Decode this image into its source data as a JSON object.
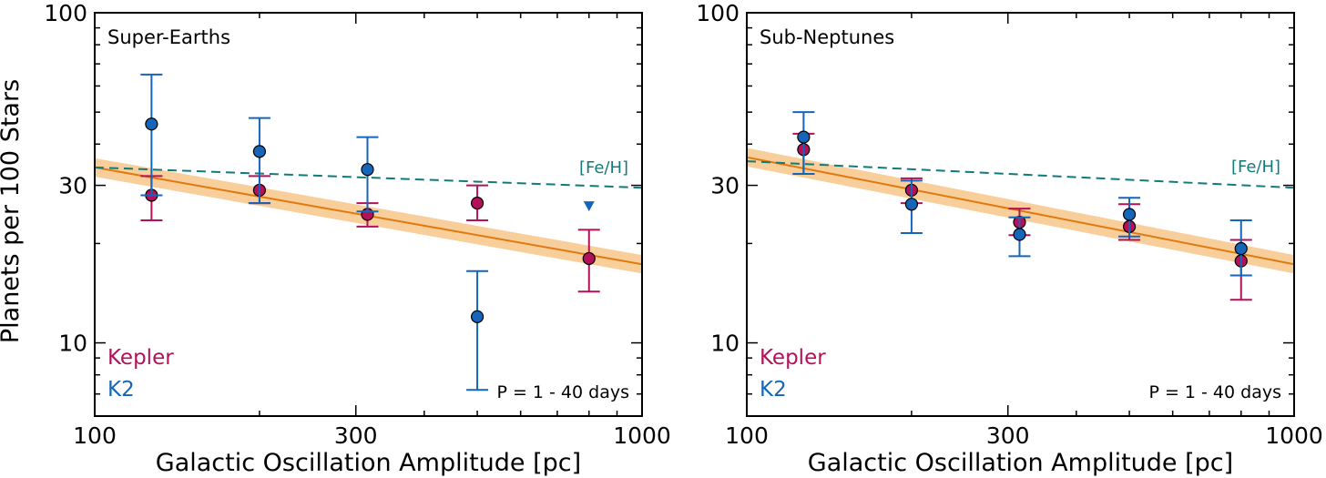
{
  "figure": {
    "ylabel": "Planets per 100 Stars",
    "colors": {
      "kepler": "#b5105a",
      "k2": "#1565b8",
      "fit_line": "#e07a10",
      "fit_band": "#f8cf9a",
      "metallicity": "#137a7a"
    }
  },
  "chart_data": [
    {
      "type": "scatter",
      "panel": "left",
      "title": "Super-Earths",
      "xlabel": "Galactic Oscillation Amplitude [pc]",
      "ylabel": "Planets per 100 Stars",
      "x_scale": "log",
      "y_scale": "log",
      "xlim": [
        100,
        1000
      ],
      "ylim": [
        6,
        100
      ],
      "x_ticks": [
        100,
        300,
        1000
      ],
      "y_ticks": [
        10,
        30,
        100
      ],
      "grid": false,
      "note": "P = 1 - 40 days",
      "legend": {
        "placement": "bottom-left",
        "entries": [
          "Kepler",
          "K2"
        ]
      },
      "series": [
        {
          "name": "Kepler",
          "color": "#b5105a",
          "points": [
            {
              "x": 127,
              "y": 28,
              "lo": 23.5,
              "hi": 32
            },
            {
              "x": 200,
              "y": 29,
              "lo": 26.5,
              "hi": 32
            },
            {
              "x": 315,
              "y": 24.5,
              "lo": 22.5,
              "hi": 26.5
            },
            {
              "x": 500,
              "y": 26.5,
              "lo": 23.5,
              "hi": 30
            },
            {
              "x": 800,
              "y": 18,
              "lo": 14.3,
              "hi": 22
            }
          ]
        },
        {
          "name": "K2",
          "color": "#1565b8",
          "points": [
            {
              "x": 127,
              "y": 46,
              "lo": 28,
              "hi": 65
            },
            {
              "x": 200,
              "y": 38,
              "lo": 26.5,
              "hi": 48
            },
            {
              "x": 315,
              "y": 33.5,
              "lo": 25,
              "hi": 42
            },
            {
              "x": 500,
              "y": 12,
              "lo": 7.2,
              "hi": 16.5
            },
            {
              "x": 800,
              "y": 26,
              "upper_limit": true
            }
          ]
        }
      ],
      "fit": {
        "x": [
          100,
          1000
        ],
        "y": [
          34,
          17.3
        ],
        "band_halfwidth_dex": 0.028
      },
      "metallicity_trend": {
        "label": "[Fe/H]",
        "x": [
          100,
          1000
        ],
        "y": [
          34,
          29.5
        ]
      }
    },
    {
      "type": "scatter",
      "panel": "right",
      "title": "Sub-Neptunes",
      "xlabel": "Galactic Oscillation Amplitude [pc]",
      "ylabel": "",
      "x_scale": "log",
      "y_scale": "log",
      "xlim": [
        100,
        1000
      ],
      "ylim": [
        6,
        100
      ],
      "x_ticks": [
        100,
        300,
        1000
      ],
      "y_ticks": [
        10,
        30,
        100
      ],
      "grid": false,
      "note": "P = 1 - 40 days",
      "legend": {
        "placement": "bottom-left",
        "entries": [
          "Kepler",
          "K2"
        ]
      },
      "series": [
        {
          "name": "Kepler",
          "color": "#b5105a",
          "points": [
            {
              "x": 127,
              "y": 38.5,
              "lo": 32.5,
              "hi": 43
            },
            {
              "x": 200,
              "y": 29,
              "lo": 26.5,
              "hi": 31.5
            },
            {
              "x": 315,
              "y": 23.2,
              "lo": 21.2,
              "hi": 25.5
            },
            {
              "x": 500,
              "y": 22.5,
              "lo": 20.5,
              "hi": 26.3
            },
            {
              "x": 800,
              "y": 17.7,
              "lo": 13.5,
              "hi": 20.5
            }
          ]
        },
        {
          "name": "K2",
          "color": "#1565b8",
          "points": [
            {
              "x": 127,
              "y": 42,
              "lo": 32.5,
              "hi": 50
            },
            {
              "x": 200,
              "y": 26.3,
              "lo": 21.5,
              "hi": 31
            },
            {
              "x": 315,
              "y": 21.3,
              "lo": 18.3,
              "hi": 24
            },
            {
              "x": 500,
              "y": 24.5,
              "lo": 21,
              "hi": 27.5
            },
            {
              "x": 800,
              "y": 19.3,
              "lo": 16,
              "hi": 23.5
            }
          ]
        }
      ],
      "fit": {
        "x": [
          100,
          1000
        ],
        "y": [
          36.5,
          17.3
        ],
        "band_halfwidth_dex": 0.028
      },
      "metallicity_trend": {
        "label": "[Fe/H]",
        "x": [
          100,
          1000
        ],
        "y": [
          35.5,
          29.5
        ]
      }
    }
  ]
}
